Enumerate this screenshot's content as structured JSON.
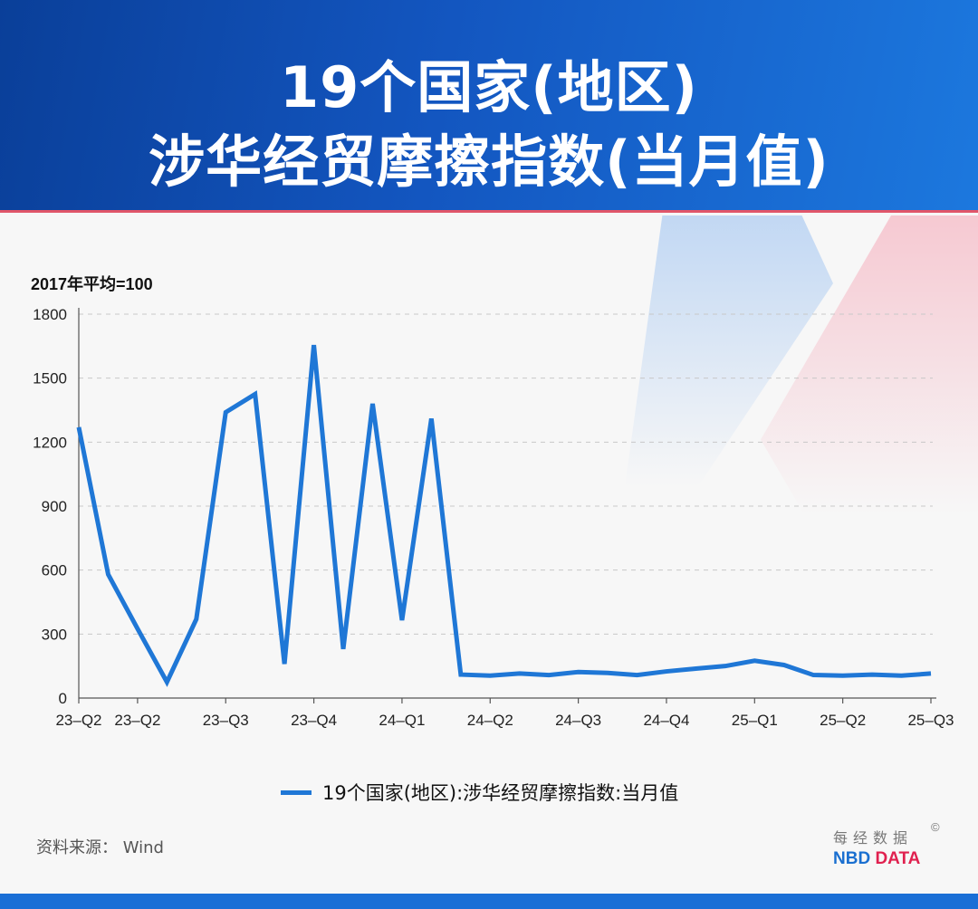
{
  "header": {
    "title_line1": "19个国家(地区)",
    "title_line2": "涉华经贸摩擦指数(当月值)"
  },
  "chart_data": {
    "type": "line",
    "title": "19个国家(地区) 涉华经贸摩擦指数(当月值)",
    "ylabel": "2017年平均=100",
    "ylim": [
      0,
      1800
    ],
    "yticks": [
      0,
      300,
      600,
      900,
      1200,
      1500,
      1800
    ],
    "grid": true,
    "legend_placement": "bottom",
    "color": "#1f77d6",
    "xtick_labels": [
      {
        "index": 0,
        "label": "23–Q2"
      },
      {
        "index": 2,
        "label": "23–Q2"
      },
      {
        "index": 5,
        "label": "23–Q3"
      },
      {
        "index": 8,
        "label": "23–Q4"
      },
      {
        "index": 11,
        "label": "24–Q1"
      },
      {
        "index": 14,
        "label": "24–Q2"
      },
      {
        "index": 17,
        "label": "24–Q3"
      },
      {
        "index": 20,
        "label": "24–Q4"
      },
      {
        "index": 23,
        "label": "25–Q1"
      },
      {
        "index": 26,
        "label": "25–Q2"
      },
      {
        "index": 29,
        "label": "25–Q3"
      }
    ],
    "series": [
      {
        "name": "19个国家(地区):涉华经贸摩擦指数:当月值",
        "values": [
          1270,
          580,
          325,
          75,
          370,
          1340,
          1425,
          160,
          1655,
          230,
          1380,
          365,
          1310,
          110,
          105,
          115,
          108,
          122,
          118,
          108,
          125,
          138,
          150,
          175,
          155,
          108,
          105,
          110,
          105,
          115
        ]
      }
    ]
  },
  "legend": {
    "label": "19个国家(地区):涉华经贸摩擦指数:当月值"
  },
  "footer": {
    "source": "资料来源： Wind",
    "logo_cn": "每经数据",
    "logo_nbd": "NBD",
    "logo_data": "DATA",
    "copyright": "©"
  }
}
